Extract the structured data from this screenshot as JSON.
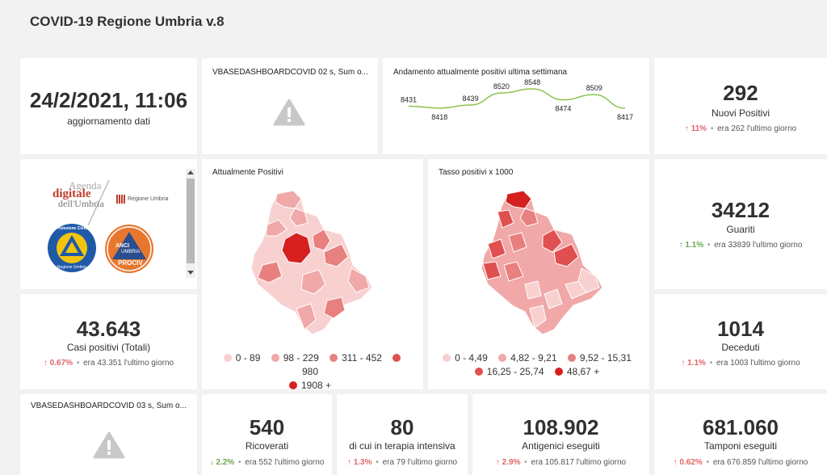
{
  "header": {
    "title": "COVID-19 Regione Umbria v.8"
  },
  "update": {
    "datetime": "24/2/2021, 11:06",
    "label": "aggiornamento dati"
  },
  "error_card_1": {
    "title": "VBASEDASHBOARDCOVID 02 s, Sum o..."
  },
  "error_card_2": {
    "title": "VBASEDASHBOARDCOVID 03 s, Sum o..."
  },
  "trend_chart": {
    "title": "Andamento attualmente positivi ultima settimana",
    "color": "#8cc152"
  },
  "chart_data": {
    "type": "line",
    "title": "Andamento attualmente positivi ultima settimana",
    "values": [
      8431,
      8418,
      8439,
      8520,
      8548,
      8474,
      8509,
      8417
    ],
    "labels": [
      "8431",
      "8418",
      "8439",
      "8520",
      "8548",
      "8474",
      "8509",
      "8417"
    ],
    "grid": false
  },
  "logos": {
    "agenda_line1": "Agenda",
    "agenda_line2": "digitale",
    "agenda_line3": "dell'Umbria",
    "regione": "Regione Umbria",
    "protezione_top": "Protezione Civile",
    "protezione_bottom": "Regione Umbria",
    "anci_1": "ANCI",
    "anci_2": "UMBRIA",
    "anci_3": "PROCIV"
  },
  "map_positivi": {
    "title": "Attualmente Positivi",
    "legend": [
      {
        "label": "0 - 89",
        "color": "#f8d0d0"
      },
      {
        "label": "98 - 229",
        "color": "#f0a8a8"
      },
      {
        "label": "311 - 452",
        "color": "#e88080"
      },
      {
        "label": "980",
        "color": "#e05050"
      },
      {
        "label": "1908 +",
        "color": "#d62020"
      }
    ]
  },
  "map_tasso": {
    "title": "Tasso positivi x 1000",
    "legend": [
      {
        "label": "0 - 4,49",
        "color": "#f8d0d0"
      },
      {
        "label": "4,82 - 9,21",
        "color": "#f0a8a8"
      },
      {
        "label": "9,52 - 15,31",
        "color": "#e88080"
      },
      {
        "label": "16,25 - 25,74",
        "color": "#e05050"
      },
      {
        "label": "48,67 +",
        "color": "#d62020"
      }
    ]
  },
  "kpi": {
    "nuovi": {
      "value": "292",
      "label": "Nuovi Positivi",
      "pct": "11%",
      "prev": "era 262  l'ultimo giorno",
      "dir": "up-red"
    },
    "guariti": {
      "value": "34212",
      "label": "Guariti",
      "pct": "1.1%",
      "prev": "era 33839  l'ultimo giorno",
      "dir": "up-green"
    },
    "deceduti": {
      "value": "1014",
      "label": "Deceduti",
      "pct": "1.1%",
      "prev": "era 1003  l'ultimo giorno",
      "dir": "up-red"
    },
    "casi": {
      "value": "43.643",
      "label": "Casi positivi (Totali)",
      "pct": "0.67%",
      "prev": "era 43.351  l'ultimo giorno",
      "dir": "up-red"
    },
    "ricoverati": {
      "value": "540",
      "label": "Ricoverati",
      "pct": "2.2%",
      "prev": "era 552  l'ultimo giorno",
      "dir": "down-green"
    },
    "terapia": {
      "value": "80",
      "label": "di cui in terapia intensiva",
      "pct": "1.3%",
      "prev": "era 79  l'ultimo giorno",
      "dir": "up-red"
    },
    "antigenici": {
      "value": "108.902",
      "label": "Antigenici eseguiti",
      "pct": "2.9%",
      "prev": "era 105.817  l'ultimo giorno",
      "dir": "up-red"
    },
    "tamponi": {
      "value": "681.060",
      "label": "Tamponi eseguiti",
      "pct": "0.62%",
      "prev": "era 676.859  l'ultimo giorno",
      "dir": "up-red"
    }
  }
}
